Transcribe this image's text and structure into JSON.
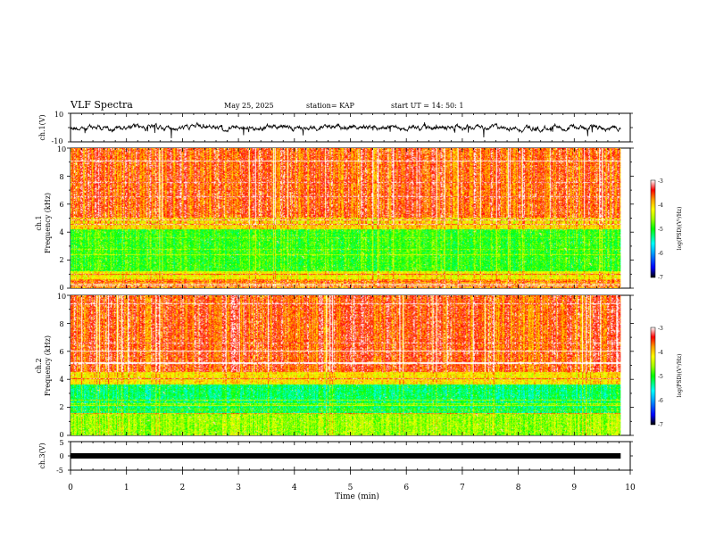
{
  "header": {
    "title": "VLF Spectra",
    "date": "May 25, 2025",
    "station": "station= KAP",
    "start": "start UT =  14: 50: 1"
  },
  "chart_data": [
    {
      "type": "line",
      "name": "ch1-waveform",
      "ylabel": "ch.1(V)",
      "ylim": [
        -10,
        10
      ],
      "yticks": [
        "10",
        "-10"
      ],
      "color": "#000000"
    },
    {
      "type": "heatmap",
      "name": "ch1-spectrogram",
      "ylabel": "ch.1\nFrequency (kHz)",
      "ylabel_line1": "ch.1",
      "ylabel_line2": "Frequency (kHz)",
      "ylim": [
        0,
        10
      ],
      "yticks": [
        "0",
        "2",
        "4",
        "6",
        "8",
        "10"
      ],
      "colorbar": {
        "label": "log(PSD)(V²/Hz)",
        "range": [
          -7,
          -3
        ],
        "ticks": [
          "-3",
          "-4",
          "-5",
          "-6",
          "-7"
        ]
      }
    },
    {
      "type": "heatmap",
      "name": "ch2-spectrogram",
      "ylabel_line1": "ch.2",
      "ylabel_line2": "Frequency (kHz)",
      "ylim": [
        0,
        10
      ],
      "yticks": [
        "0",
        "2",
        "4",
        "6",
        "8",
        "10"
      ],
      "colorbar": {
        "label": "log(PSD)(V²/Hz)",
        "range": [
          -7,
          -3
        ],
        "ticks": [
          "-3",
          "-4",
          "-5",
          "-6",
          "-7"
        ]
      }
    },
    {
      "type": "line",
      "name": "ch3-waveform",
      "ylabel": "ch.3(V)",
      "ylim": [
        -5,
        5
      ],
      "yticks": [
        "5",
        "0",
        "-5"
      ],
      "color": "#000000"
    }
  ],
  "xaxis": {
    "label": "Time (min)",
    "range": [
      0,
      10
    ],
    "ticks": [
      "0",
      "1",
      "2",
      "3",
      "4",
      "5",
      "6",
      "7",
      "8",
      "9",
      "10"
    ],
    "data_end": 9.83
  },
  "colors": {
    "cmap": [
      "#000000",
      "#0000ff",
      "#00a0ff",
      "#00ffff",
      "#00ff00",
      "#a0ff00",
      "#ffff00",
      "#ffa000",
      "#ff0000",
      "#ffffff"
    ]
  }
}
